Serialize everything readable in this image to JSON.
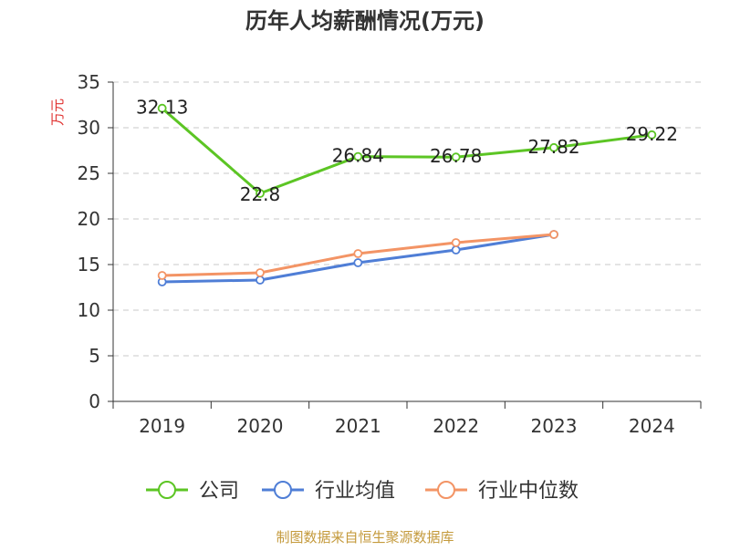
{
  "chart_data": {
    "type": "line",
    "title": "历年人均薪酬情况(万元)",
    "ylabel": "万元",
    "xlabel": "",
    "categories": [
      "2019",
      "2020",
      "2021",
      "2022",
      "2023",
      "2024"
    ],
    "ylim": [
      0,
      35
    ],
    "yticks": [
      0,
      5,
      10,
      15,
      20,
      25,
      30,
      35
    ],
    "grid": true,
    "legend_position": "bottom",
    "series": [
      {
        "name": "公司",
        "color": "#5cc524",
        "values": [
          32.13,
          22.8,
          26.84,
          26.78,
          27.82,
          29.22
        ],
        "labels": [
          "32.13",
          "22.8",
          "26.84",
          "26.78",
          "27.82",
          "29.22"
        ]
      },
      {
        "name": "行业均值",
        "color": "#4f7ed6",
        "values": [
          13.1,
          13.3,
          15.2,
          16.6,
          18.3,
          null
        ]
      },
      {
        "name": "行业中位数",
        "color": "#f39465",
        "values": [
          13.8,
          14.1,
          16.2,
          17.4,
          18.3,
          null
        ]
      }
    ]
  },
  "source_text": "制图数据来自恒生聚源数据库"
}
